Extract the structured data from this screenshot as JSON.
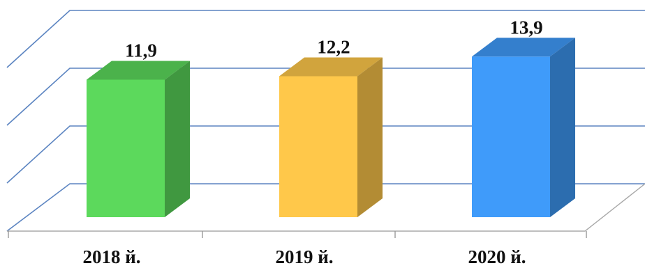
{
  "chart_data": {
    "type": "bar",
    "categories": [
      "2018 й.",
      "2019 й.",
      "2020 й."
    ],
    "values": [
      11.9,
      12.2,
      13.9
    ],
    "value_labels": [
      "11,9",
      "12,2",
      "13,9"
    ],
    "ylim": [
      0,
      15
    ],
    "grid": true,
    "legend": false,
    "colors": [
      "#5cd95c",
      "#ffc84a",
      "#3f9bfa"
    ]
  }
}
